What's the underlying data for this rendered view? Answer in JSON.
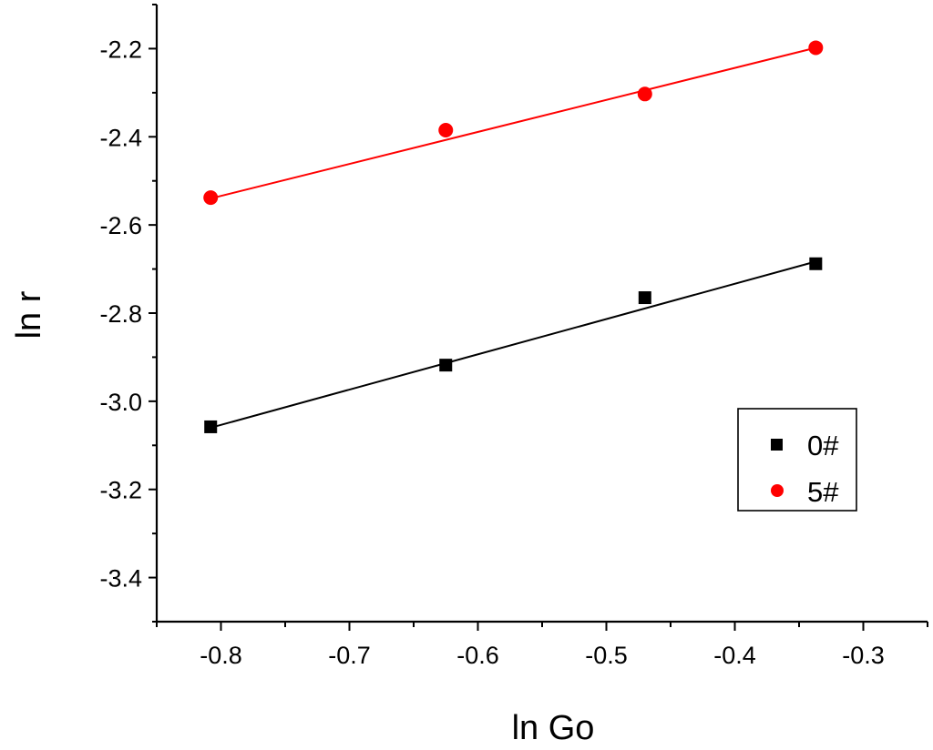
{
  "chart_data": {
    "type": "scatter",
    "xlabel": "ln Go",
    "ylabel": "ln r",
    "xlim": [
      -0.85,
      -0.25
    ],
    "ylim": [
      -3.5,
      -2.1
    ],
    "x_ticks": [
      -0.8,
      -0.7,
      -0.6,
      -0.5,
      -0.4,
      -0.3
    ],
    "x_tick_labels": [
      "-0.8",
      "-0.7",
      "-0.6",
      "-0.5",
      "-0.4",
      "-0.3"
    ],
    "y_ticks": [
      -2.2,
      -2.4,
      -2.6,
      -2.8,
      -3.0,
      -3.2,
      -3.4
    ],
    "y_tick_labels": [
      "-2.2",
      "-2.4",
      "-2.6",
      "-2.8",
      "-3.0",
      "-3.2",
      "-3.4"
    ],
    "grid": false,
    "legend_position": "right",
    "series": [
      {
        "name": "0#",
        "marker": "square",
        "color": "#000000",
        "x": [
          -0.808,
          -0.625,
          -0.47,
          -0.337
        ],
        "y": [
          -3.058,
          -2.918,
          -2.765,
          -2.688
        ],
        "fit": {
          "x": [
            -0.808,
            -0.337
          ],
          "y": [
            -3.06,
            -2.683
          ]
        }
      },
      {
        "name": "5#",
        "marker": "circle",
        "color": "#ff0000",
        "x": [
          -0.808,
          -0.625,
          -0.47,
          -0.337
        ],
        "y": [
          -2.538,
          -2.385,
          -2.303,
          -2.198
        ],
        "fit": {
          "x": [
            -0.808,
            -0.337
          ],
          "y": [
            -2.54,
            -2.198
          ]
        }
      }
    ]
  }
}
